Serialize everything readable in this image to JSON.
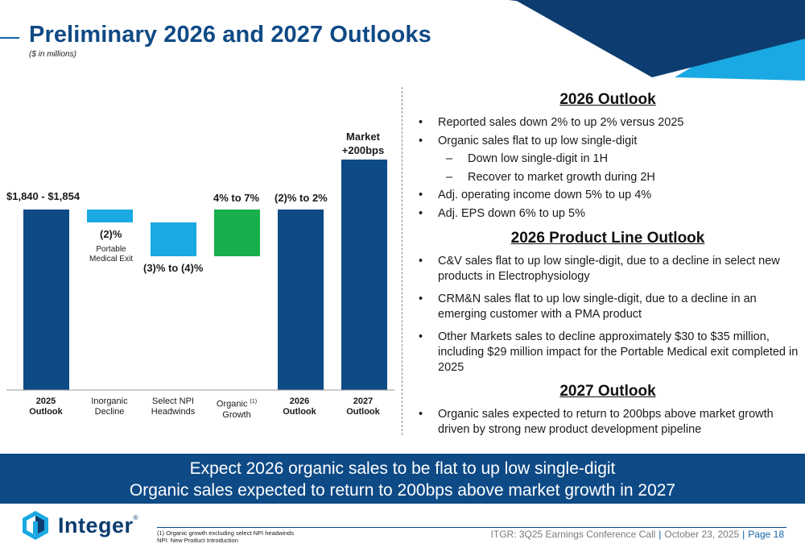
{
  "page": {
    "title": "Preliminary 2026 and 2027 Outlooks",
    "subtitle": "($ in millions)"
  },
  "chart_data": {
    "type": "bar",
    "subtype": "waterfall",
    "categories": [
      "2025 Outlook",
      "Inorganic Decline",
      "Select NPI Headwinds",
      "Organic Growth",
      "2026 Outlook",
      "2027 Outlook"
    ],
    "value_labels": [
      "$1,840 - $1,854",
      "(2)%",
      "(3)% to (4)%",
      "4% to 7%",
      "(2)% to 2%",
      "Market +200bps"
    ],
    "notes": [
      "",
      "Portable Medical Exit",
      "",
      "",
      "",
      ""
    ],
    "step_types": [
      "total",
      "decrease",
      "decrease",
      "increase",
      "total",
      "total"
    ],
    "colors": {
      "total": "#0e4a86",
      "decrease": "#1aa9e2",
      "increase": "#17b04d"
    },
    "footnote_marker": "(1)"
  },
  "chart_labels": {
    "c0_line1": "2025",
    "c0_line2": "Outlook",
    "c1_line1": "Inorganic",
    "c1_line2": "Decline",
    "c2_line1": "Select NPI",
    "c2_line2": "Headwinds",
    "c3_line1": "Organic",
    "c3_line2": "Growth",
    "c3_sup": "(1)",
    "c4_line1": "2026",
    "c4_line2": "Outlook",
    "c5_line1": "2027",
    "c5_line2": "Outlook",
    "v0": "$1,840 - $1,854",
    "v1": "(2)%",
    "v1_note1": "Portable",
    "v1_note2": "Medical Exit",
    "v2": "(3)% to (4)%",
    "v3": "4% to 7%",
    "v4": "(2)% to 2%",
    "v5_line1": "Market",
    "v5_line2": "+200bps"
  },
  "outlook_2026": {
    "heading": "2026 Outlook",
    "b1": "Reported sales down 2% to up 2% versus 2025",
    "b2": "Organic sales flat to up low single-digit",
    "b2a": "Down low single-digit in 1H",
    "b2b": "Recover to market growth during 2H",
    "b3": "Adj. operating income down 5% to up 4%",
    "b4": "Adj. EPS down 6% to up 5%"
  },
  "product_line_2026": {
    "heading": "2026 Product Line Outlook",
    "b1": "C&V sales flat to up low single-digit, due to a decline in select new products in Electrophysiology",
    "b2": "CRM&N sales flat to up low single-digit, due to a decline in an emerging customer with a PMA product",
    "b3": "Other Markets sales to decline approximately $30 to $35 million, including $29 million impact for the Portable Medical exit completed in 2025"
  },
  "outlook_2027": {
    "heading": "2027 Outlook",
    "b1": "Organic sales expected to return to 200bps above market growth driven by strong new product development pipeline"
  },
  "banner": {
    "line1": "Expect 2026 organic sales to be flat to up low single-digit",
    "line2": "Organic sales expected to return to 200bps above market growth in 2027"
  },
  "footer": {
    "logo_text": "Integer",
    "logo_mark": "®",
    "footnote1": "(1) Organic growth excluding select NPI headwinds",
    "footnote2": "NPI: New Product Introduction",
    "event": "ITGR: 3Q25 Earnings Conference Call",
    "separator": "|",
    "date": "October 23, 2025",
    "page": "Page 18"
  },
  "colors": {
    "brand_dark": "#0e4a86",
    "title": "#0f4a85",
    "accent_light": "#1aa9e2",
    "green": "#17b04d",
    "corner_dark": "#0d3d70"
  }
}
